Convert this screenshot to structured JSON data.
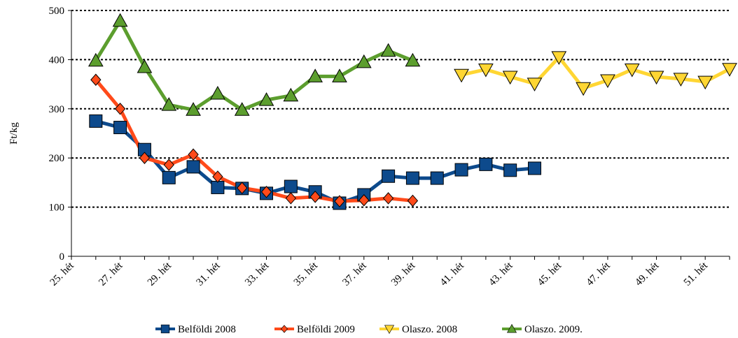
{
  "chart_data": {
    "type": "line",
    "y_label": "Ft/kg",
    "categories": [
      "25. hét",
      null,
      "27. hét",
      null,
      "29. hét",
      null,
      "31. hét",
      null,
      "33. hét",
      null,
      "35. hét",
      null,
      "37. hét",
      null,
      "39. hét",
      null,
      "41. hét",
      null,
      "43. hét",
      null,
      "45. hét",
      null,
      "47. hét",
      null,
      "49. hét",
      null,
      "51. hét",
      null
    ],
    "series": [
      {
        "name": "Belföldi 2008",
        "color": "#0d4a8c",
        "marker": "square",
        "values": [
          null,
          275,
          262,
          217,
          160,
          182,
          140,
          138,
          128,
          142,
          131,
          108,
          125,
          163,
          159,
          159,
          176,
          187,
          175,
          179,
          null,
          null,
          null,
          null,
          null,
          null,
          null,
          null
        ]
      },
      {
        "name": "Belföldi 2009",
        "color": "#ff4a1a",
        "marker": "diamond",
        "values": [
          null,
          359,
          300,
          200,
          186,
          207,
          162,
          139,
          131,
          118,
          121,
          112,
          114,
          118,
          113,
          null,
          null,
          null,
          null,
          null,
          null,
          null,
          null,
          null,
          null,
          null,
          null,
          null
        ]
      },
      {
        "name": "Olaszo. 2008",
        "color": "#ffd633",
        "marker": "triangle-down",
        "values": [
          null,
          null,
          null,
          null,
          null,
          null,
          null,
          null,
          null,
          null,
          null,
          null,
          null,
          null,
          null,
          null,
          369,
          380,
          365,
          351,
          405,
          342,
          358,
          380,
          365,
          361,
          355,
          381
        ]
      },
      {
        "name": "Olaszo. 2009.",
        "color": "#5c9e2e",
        "marker": "triangle-up",
        "values": [
          null,
          398,
          479,
          385,
          308,
          298,
          331,
          298,
          318,
          327,
          366,
          366,
          395,
          418,
          398,
          null,
          null,
          null,
          null,
          null,
          null,
          null,
          null,
          null,
          null,
          null,
          null,
          null
        ]
      }
    ],
    "ylim": [
      0,
      500
    ],
    "yticks": [
      0,
      100,
      200,
      300,
      400,
      500
    ],
    "grid": true
  }
}
